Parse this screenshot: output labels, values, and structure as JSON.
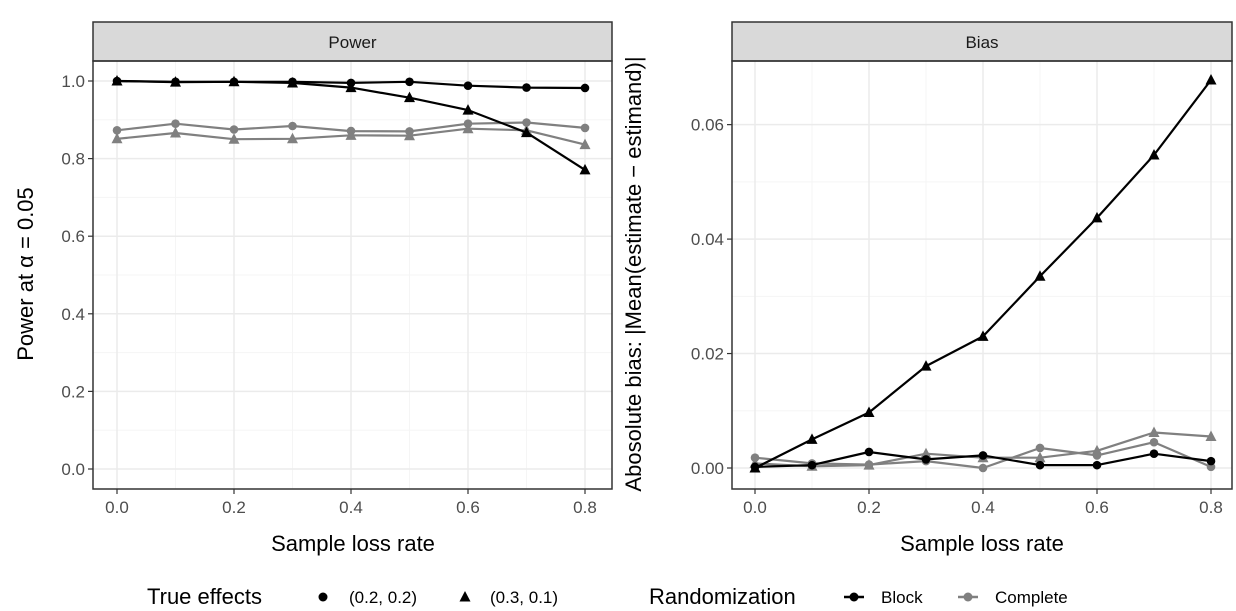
{
  "chart_data": [
    {
      "type": "line",
      "title": "Power",
      "xlabel": "Sample loss rate",
      "ylabel": "Power at α = 0.05",
      "xlim": [
        0,
        0.8
      ],
      "ylim": [
        0,
        1.0
      ],
      "xticks": [
        "0.0",
        "0.2",
        "0.4",
        "0.6",
        "0.8"
      ],
      "yticks": [
        "0.0",
        "0.2",
        "0.4",
        "0.6",
        "0.8",
        "1.0"
      ],
      "grid": true,
      "x": [
        0,
        0.1,
        0.2,
        0.3,
        0.4,
        0.5,
        0.6,
        0.7,
        0.8
      ],
      "series": [
        {
          "randomization": "Block",
          "effects": "(0.2, 0.2)",
          "shape": "circle",
          "color": "#000000",
          "values": [
            1.0,
            0.998,
            0.998,
            0.998,
            0.995,
            0.998,
            0.988,
            0.983,
            0.982
          ]
        },
        {
          "randomization": "Block",
          "effects": "(0.3, 0.1)",
          "shape": "triangle",
          "color": "#000000",
          "values": [
            1.0,
            0.997,
            0.998,
            0.995,
            0.983,
            0.957,
            0.925,
            0.867,
            0.771
          ]
        },
        {
          "randomization": "Complete",
          "effects": "(0.2, 0.2)",
          "shape": "circle",
          "color": "#808080",
          "values": [
            0.873,
            0.89,
            0.875,
            0.884,
            0.871,
            0.87,
            0.89,
            0.893,
            0.879
          ]
        },
        {
          "randomization": "Complete",
          "effects": "(0.3, 0.1)",
          "shape": "triangle",
          "color": "#808080",
          "values": [
            0.851,
            0.866,
            0.85,
            0.851,
            0.86,
            0.859,
            0.877,
            0.873,
            0.836
          ]
        }
      ]
    },
    {
      "type": "line",
      "title": "Bias",
      "xlabel": "Sample loss rate",
      "ylabel": "Abosolute bias: |Mean(estimate − estimand)|",
      "xlim": [
        0,
        0.8
      ],
      "ylim": [
        0,
        0.068
      ],
      "xticks": [
        "0.0",
        "0.2",
        "0.4",
        "0.6",
        "0.8"
      ],
      "yticks": [
        "0.00",
        "0.02",
        "0.04",
        "0.06"
      ],
      "grid": true,
      "x": [
        0,
        0.1,
        0.2,
        0.3,
        0.4,
        0.5,
        0.6,
        0.7,
        0.8
      ],
      "series": [
        {
          "randomization": "Block",
          "effects": "(0.2, 0.2)",
          "shape": "circle",
          "color": "#000000",
          "values": [
            0.0002,
            0.0005,
            0.0028,
            0.0015,
            0.0022,
            0.0005,
            0.0005,
            0.0025,
            0.0012
          ]
        },
        {
          "randomization": "Block",
          "effects": "(0.3, 0.1)",
          "shape": "triangle",
          "color": "#000000",
          "values": [
            0.0,
            0.005,
            0.0097,
            0.0178,
            0.023,
            0.0335,
            0.0437,
            0.0547,
            0.0678
          ]
        },
        {
          "randomization": "Complete",
          "effects": "(0.2, 0.2)",
          "shape": "circle",
          "color": "#808080",
          "values": [
            0.0018,
            0.0008,
            0.0006,
            0.0012,
            0.0,
            0.0035,
            0.0022,
            0.0045,
            0.0002
          ]
        },
        {
          "randomization": "Complete",
          "effects": "(0.3, 0.1)",
          "shape": "triangle",
          "color": "#808080",
          "values": [
            0.0008,
            0.0003,
            0.0005,
            0.0025,
            0.0018,
            0.0018,
            0.003,
            0.0062,
            0.0055
          ]
        }
      ]
    }
  ],
  "legend": {
    "effects_title": "True effects",
    "effects_items": [
      {
        "label": "(0.2, 0.2)",
        "shape": "circle"
      },
      {
        "label": "(0.3, 0.1)",
        "shape": "triangle"
      }
    ],
    "randomization_title": "Randomization",
    "randomization_items": [
      {
        "label": "Block",
        "color": "#000000"
      },
      {
        "label": "Complete",
        "color": "#808080"
      }
    ]
  },
  "colors": {
    "strip_fill": "#d9d9d9",
    "grid_major": "#ebebeb",
    "grid_minor": "#f5f5f5",
    "frame": "#333333"
  }
}
